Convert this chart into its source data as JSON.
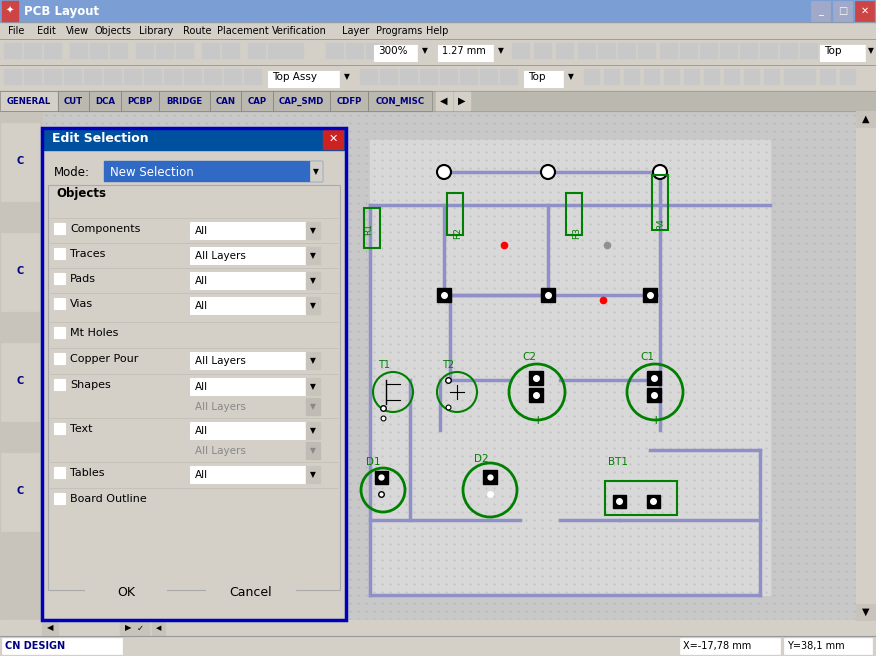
{
  "title_bar": "PCB Layout",
  "title_bar_bg": "#7b9fd4",
  "title_bar_fg": "#ffffff",
  "menu_items": [
    "File",
    "Edit",
    "View",
    "Objects",
    "Library",
    "Route",
    "Placement",
    "Verification",
    "Layer",
    "Programs",
    "Help"
  ],
  "tab_items": [
    "GENERAL",
    "CUT",
    "DCA",
    "PCBP",
    "BRIDGE",
    "CAN",
    "CAP",
    "CAP_SMD",
    "CDFP",
    "CON_MISC"
  ],
  "dialog_title": "Edit Selection",
  "dialog_bg": "#d4d0c8",
  "dialog_border": "#0000bb",
  "mode_label": "Mode:",
  "mode_value": "New Selection",
  "objects_label": "Objects",
  "ok_text": "OK",
  "cancel_text": "Cancel",
  "pcb_bg": "#c8c8c8",
  "pcb_board_bg": "#dcdcdc",
  "pcb_trace_color": "#9090c8",
  "pcb_component_color": "#008000",
  "status_bar_text": "X=-17,78 mm",
  "status_bar_text2": "Y=38,1 mm",
  "window_bg": "#d4d0c8",
  "checkbox_items": [
    [
      "Components",
      "All",
      true
    ],
    [
      "Traces",
      "All Layers",
      true
    ],
    [
      "Pads",
      "All",
      true
    ],
    [
      "Vias",
      "All",
      true
    ],
    [
      "Mt Holes",
      null,
      true
    ],
    [
      "Copper Pour",
      "All Layers",
      true
    ],
    [
      "Shapes",
      "All",
      true
    ],
    [
      null,
      "All Layers",
      false
    ],
    [
      "Text",
      "All",
      true
    ],
    [
      null,
      "All Layers",
      false
    ],
    [
      "Tables",
      "All",
      true
    ],
    [
      "Board Outline",
      null,
      true
    ]
  ]
}
